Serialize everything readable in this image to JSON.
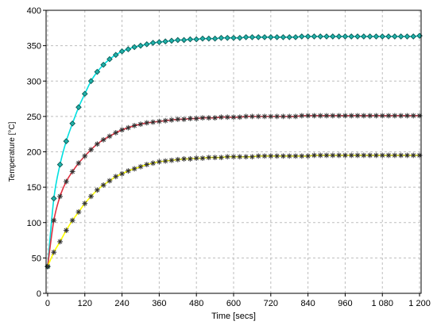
{
  "chart_data": {
    "type": "line",
    "title": "",
    "xlabel": "Time [secs]",
    "ylabel": "Temperature [°C]",
    "xlim": [
      -5,
      1205
    ],
    "ylim": [
      0,
      400
    ],
    "xticks": [
      0,
      120,
      240,
      360,
      480,
      600,
      720,
      840,
      960,
      1080,
      1200
    ],
    "xtick_labels": [
      "0",
      "120",
      "240",
      "360",
      "480",
      "600",
      "720",
      "840",
      "960",
      "1 080",
      "1 200"
    ],
    "yticks": [
      0,
      50,
      100,
      150,
      200,
      250,
      300,
      350,
      400
    ],
    "ytick_labels": [
      "0",
      "50",
      "100",
      "150",
      "200",
      "250",
      "300",
      "350",
      "400"
    ],
    "grid": true,
    "legend": "none",
    "marker_interval": 20,
    "series": [
      {
        "line_color": "#00e0e0",
        "marker": "diamond",
        "marker_fill": "#20b2aa",
        "marker_stroke": "#0a5a55",
        "x": [
          0,
          20,
          40,
          60,
          80,
          100,
          120,
          140,
          160,
          180,
          200,
          220,
          240,
          260,
          280,
          300,
          320,
          340,
          360,
          380,
          400,
          420,
          440,
          460,
          480,
          500,
          520,
          540,
          560,
          580,
          600,
          620,
          640,
          660,
          680,
          700,
          720,
          740,
          760,
          780,
          800,
          820,
          840,
          860,
          880,
          900,
          920,
          940,
          960,
          980,
          1000,
          1020,
          1040,
          1060,
          1080,
          1100,
          1120,
          1140,
          1160,
          1180,
          1200
        ],
        "y": [
          38,
          134,
          182,
          215,
          240,
          263,
          282,
          300,
          313,
          323,
          331,
          337,
          342,
          345,
          348,
          350,
          352,
          354,
          355,
          356,
          357,
          358,
          358,
          359,
          359,
          360,
          360,
          360,
          361,
          361,
          361,
          361,
          362,
          362,
          362,
          362,
          362,
          362,
          362,
          362,
          362,
          363,
          363,
          363,
          363,
          363,
          363,
          363,
          363,
          363,
          363,
          363,
          363,
          363,
          363,
          363,
          363,
          363,
          363,
          363,
          364
        ]
      },
      {
        "line_color": "#e03040",
        "marker": "star",
        "marker_stroke": "#303030",
        "x": [
          0,
          20,
          40,
          60,
          80,
          100,
          120,
          140,
          160,
          180,
          200,
          220,
          240,
          260,
          280,
          300,
          320,
          340,
          360,
          380,
          400,
          420,
          440,
          460,
          480,
          500,
          520,
          540,
          560,
          580,
          600,
          620,
          640,
          660,
          680,
          700,
          720,
          740,
          760,
          780,
          800,
          820,
          840,
          860,
          880,
          900,
          920,
          940,
          960,
          980,
          1000,
          1020,
          1040,
          1060,
          1080,
          1100,
          1120,
          1140,
          1160,
          1180,
          1200
        ],
        "y": [
          38,
          103,
          137,
          158,
          172,
          184,
          194,
          203,
          211,
          217,
          222,
          227,
          231,
          234,
          237,
          239,
          241,
          242,
          243,
          244,
          245,
          246,
          246,
          247,
          247,
          248,
          248,
          248,
          249,
          249,
          249,
          249,
          250,
          250,
          250,
          250,
          250,
          250,
          250,
          250,
          250,
          251,
          251,
          251,
          251,
          251,
          251,
          251,
          251,
          251,
          251,
          251,
          251,
          251,
          251,
          251,
          251,
          251,
          251,
          251,
          251
        ]
      },
      {
        "line_color": "#ffff00",
        "marker": "star",
        "marker_stroke": "#303030",
        "x": [
          0,
          20,
          40,
          60,
          80,
          100,
          120,
          140,
          160,
          180,
          200,
          220,
          240,
          260,
          280,
          300,
          320,
          340,
          360,
          380,
          400,
          420,
          440,
          460,
          480,
          500,
          520,
          540,
          560,
          580,
          600,
          620,
          640,
          660,
          680,
          700,
          720,
          740,
          760,
          780,
          800,
          820,
          840,
          860,
          880,
          900,
          920,
          940,
          960,
          980,
          1000,
          1020,
          1040,
          1060,
          1080,
          1100,
          1120,
          1140,
          1160,
          1180,
          1200
        ],
        "y": [
          38,
          58,
          73,
          89,
          103,
          115,
          127,
          137,
          146,
          153,
          159,
          165,
          169,
          173,
          176,
          179,
          182,
          184,
          186,
          187,
          188,
          189,
          190,
          190,
          191,
          191,
          192,
          192,
          192,
          193,
          193,
          193,
          193,
          193,
          194,
          194,
          194,
          194,
          194,
          194,
          194,
          194,
          194,
          195,
          195,
          195,
          195,
          195,
          195,
          195,
          195,
          195,
          195,
          195,
          195,
          195,
          195,
          195,
          195,
          195,
          195
        ]
      }
    ]
  }
}
